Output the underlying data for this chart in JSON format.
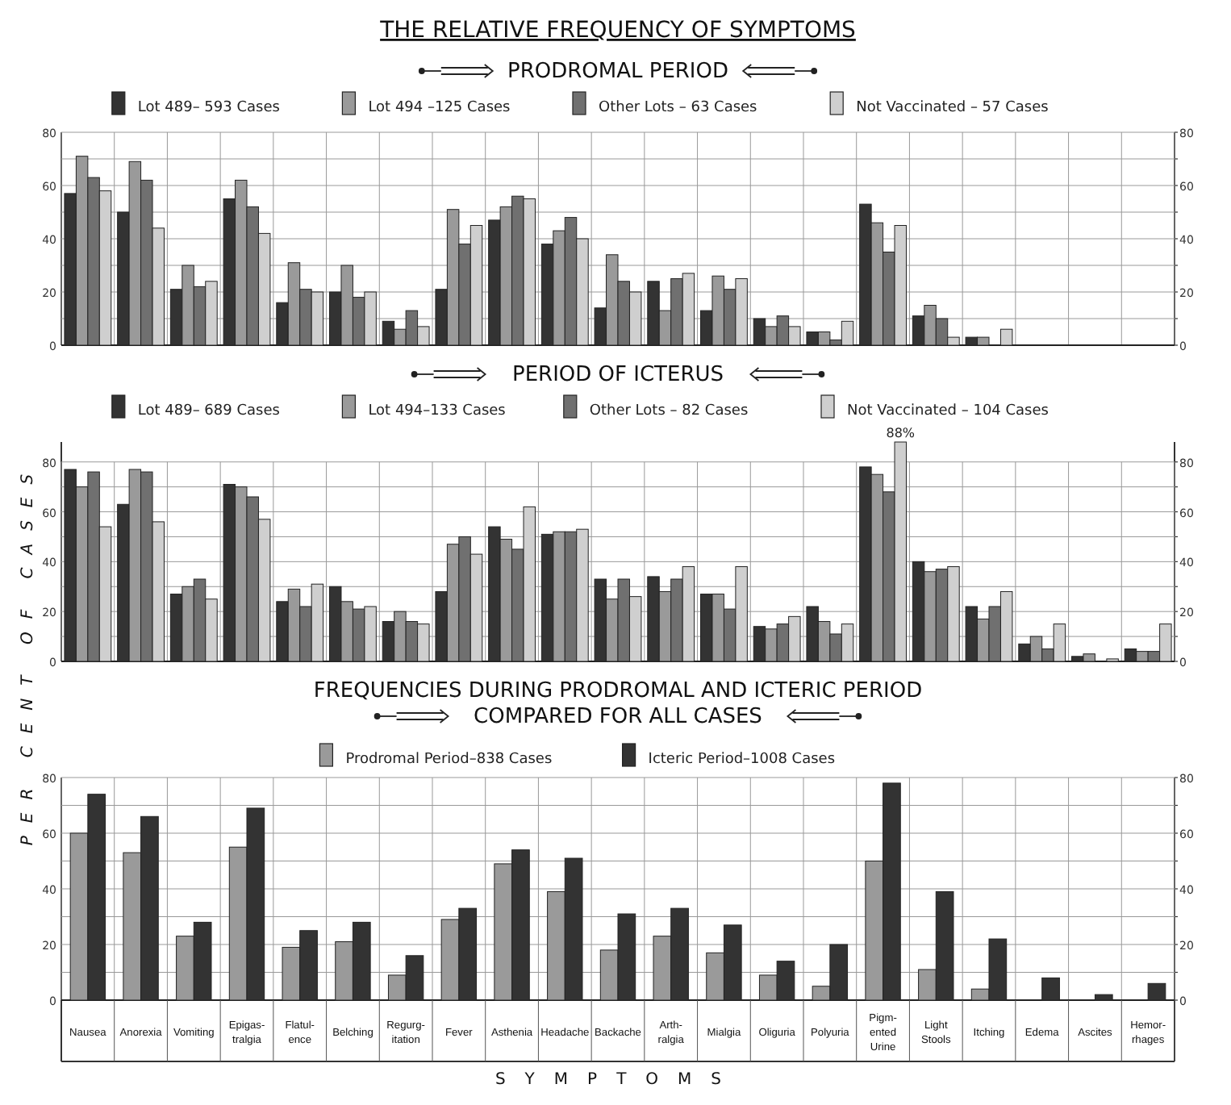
{
  "chart_data": [
    {
      "type": "bar",
      "title": "THE RELATIVE FREQUENCY OF SYMPTOMS",
      "subtitle": "PRODROMAL PERIOD",
      "categories": [
        null,
        null,
        null,
        null,
        null,
        null,
        null,
        null,
        null,
        null,
        null,
        null,
        null,
        null,
        null,
        null,
        null,
        null,
        null,
        null,
        null
      ],
      "series": [
        {
          "name": "Lot 489– 593 Cases",
          "color": "#333333",
          "values": [
            57,
            50,
            21,
            55,
            16,
            20,
            9,
            21,
            47,
            38,
            14,
            24,
            13,
            10,
            5,
            53,
            11,
            3,
            0,
            0,
            0
          ]
        },
        {
          "name": "Lot 494 –125 Cases",
          "color": "#9a9a9a",
          "values": [
            71,
            69,
            30,
            62,
            31,
            30,
            6,
            51,
            52,
            43,
            34,
            13,
            26,
            7,
            5,
            46,
            15,
            3,
            0,
            0,
            0
          ]
        },
        {
          "name": "Other Lots – 63 Cases",
          "color": "#707070",
          "values": [
            63,
            62,
            22,
            52,
            21,
            18,
            13,
            38,
            56,
            48,
            24,
            25,
            21,
            11,
            2,
            35,
            10,
            0,
            0,
            0,
            0
          ]
        },
        {
          "name": "Not Vaccinated – 57 Cases",
          "color": "#cfcfcf",
          "values": [
            58,
            44,
            24,
            42,
            20,
            20,
            7,
            45,
            55,
            40,
            20,
            27,
            25,
            7,
            9,
            45,
            3,
            6,
            0,
            0,
            0
          ]
        }
      ],
      "ylim": [
        0,
        80
      ],
      "yticks": [
        0,
        {
          "value": 10,
          "label": null
        },
        20,
        {
          "value": 30,
          "label": null
        },
        40,
        {
          "value": 50,
          "label": null
        },
        60,
        {
          "value": 70,
          "label": null
        },
        80
      ],
      "y2lim": [
        0,
        80
      ],
      "y2ticks": [
        0,
        {
          "value": 10,
          "label": null
        },
        20,
        {
          "value": 30,
          "label": null
        },
        40,
        {
          "value": 50,
          "label": null
        },
        60,
        {
          "value": 70,
          "label": null
        },
        80
      ],
      "grid": true,
      "legend": "top"
    },
    {
      "type": "bar",
      "title": "PERIOD OF ICTERUS",
      "ylabel": "PER CENT OF CASES",
      "categories": [
        null,
        null,
        null,
        null,
        null,
        null,
        null,
        null,
        null,
        null,
        null,
        null,
        null,
        null,
        null,
        null,
        null,
        null,
        null,
        null,
        null
      ],
      "series": [
        {
          "name": "Lot 489– 689 Cases",
          "color": "#333333",
          "values": [
            77,
            63,
            27,
            71,
            24,
            30,
            16,
            28,
            54,
            51,
            33,
            34,
            27,
            14,
            22,
            78,
            40,
            22,
            7,
            2,
            5
          ]
        },
        {
          "name": "Lot 494–133 Cases",
          "color": "#9a9a9a",
          "values": [
            70,
            77,
            30,
            70,
            29,
            24,
            20,
            47,
            49,
            52,
            25,
            28,
            27,
            13,
            16,
            75,
            36,
            17,
            10,
            3,
            4
          ]
        },
        {
          "name": "Other Lots – 82 Cases",
          "color": "#707070",
          "values": [
            76,
            76,
            33,
            66,
            22,
            21,
            16,
            50,
            45,
            52,
            33,
            33,
            21,
            15,
            11,
            68,
            37,
            22,
            5,
            0,
            4
          ]
        },
        {
          "name": "Not Vaccinated – 104 Cases",
          "color": "#cfcfcf",
          "values": [
            54,
            56,
            25,
            57,
            31,
            22,
            15,
            43,
            62,
            53,
            26,
            38,
            38,
            18,
            15,
            88,
            38,
            28,
            15,
            1,
            15
          ],
          "value_labels": [
            null,
            null,
            null,
            null,
            null,
            null,
            null,
            null,
            null,
            null,
            null,
            null,
            null,
            null,
            null,
            "88%",
            null,
            null,
            null,
            null,
            null
          ]
        }
      ],
      "ylim": [
        0,
        88
      ],
      "yticks": [
        0,
        {
          "value": 10,
          "label": null
        },
        20,
        {
          "value": 30,
          "label": null
        },
        40,
        {
          "value": 50,
          "label": null
        },
        60,
        {
          "value": 70,
          "label": null
        },
        80
      ],
      "y2lim": [
        0,
        88
      ],
      "y2ticks": [
        0,
        {
          "value": 10,
          "label": null
        },
        20,
        {
          "value": 30,
          "label": null
        },
        40,
        {
          "value": 50,
          "label": null
        },
        60,
        {
          "value": 70,
          "label": null
        },
        80
      ],
      "grid": true,
      "legend": "top"
    },
    {
      "type": "bar",
      "title": "FREQUENCIES DURING PRODROMAL AND ICTERIC PERIOD",
      "subtitle": "COMPARED FOR ALL CASES",
      "xlabel": "SYMPTOMS",
      "categories": [
        "Nausea",
        "Anorexia",
        "Vomiting",
        "Epigas- tralgia",
        "Flatul- ence",
        "Belching",
        "Regurg- itation",
        "Fever",
        "Asthenia",
        "Headache",
        "Backache",
        "Arth- ralgia",
        "Mialgia",
        "Oliguria",
        "Polyuria",
        "Pigm- ented Urine",
        "Light Stools",
        "Itching",
        "Edema",
        "Ascites",
        "Hemor- rhages"
      ],
      "series": [
        {
          "name": "Prodromal Period–838 Cases",
          "color": "#9a9a9a",
          "values": [
            60,
            53,
            23,
            55,
            19,
            21,
            9,
            29,
            49,
            39,
            18,
            23,
            17,
            9,
            5,
            50,
            11,
            4,
            0,
            0,
            0
          ]
        },
        {
          "name": "Icteric Period–1008 Cases",
          "color": "#333333",
          "values": [
            74,
            66,
            28,
            69,
            25,
            28,
            16,
            33,
            54,
            51,
            31,
            33,
            27,
            14,
            20,
            78,
            39,
            22,
            8,
            2,
            6
          ]
        }
      ],
      "ylim": [
        0,
        80
      ],
      "yticks": [
        0,
        {
          "value": 10,
          "label": null
        },
        20,
        {
          "value": 30,
          "label": null
        },
        40,
        {
          "value": 50,
          "label": null
        },
        60,
        {
          "value": 70,
          "label": null
        },
        80
      ],
      "y2lim": [
        0,
        80
      ],
      "y2ticks": [
        0,
        {
          "value": 10,
          "label": null
        },
        20,
        {
          "value": 30,
          "label": null
        },
        40,
        {
          "value": 50,
          "label": null
        },
        60,
        {
          "value": 70,
          "label": null
        },
        80
      ],
      "grid": true,
      "legend": "top"
    }
  ]
}
